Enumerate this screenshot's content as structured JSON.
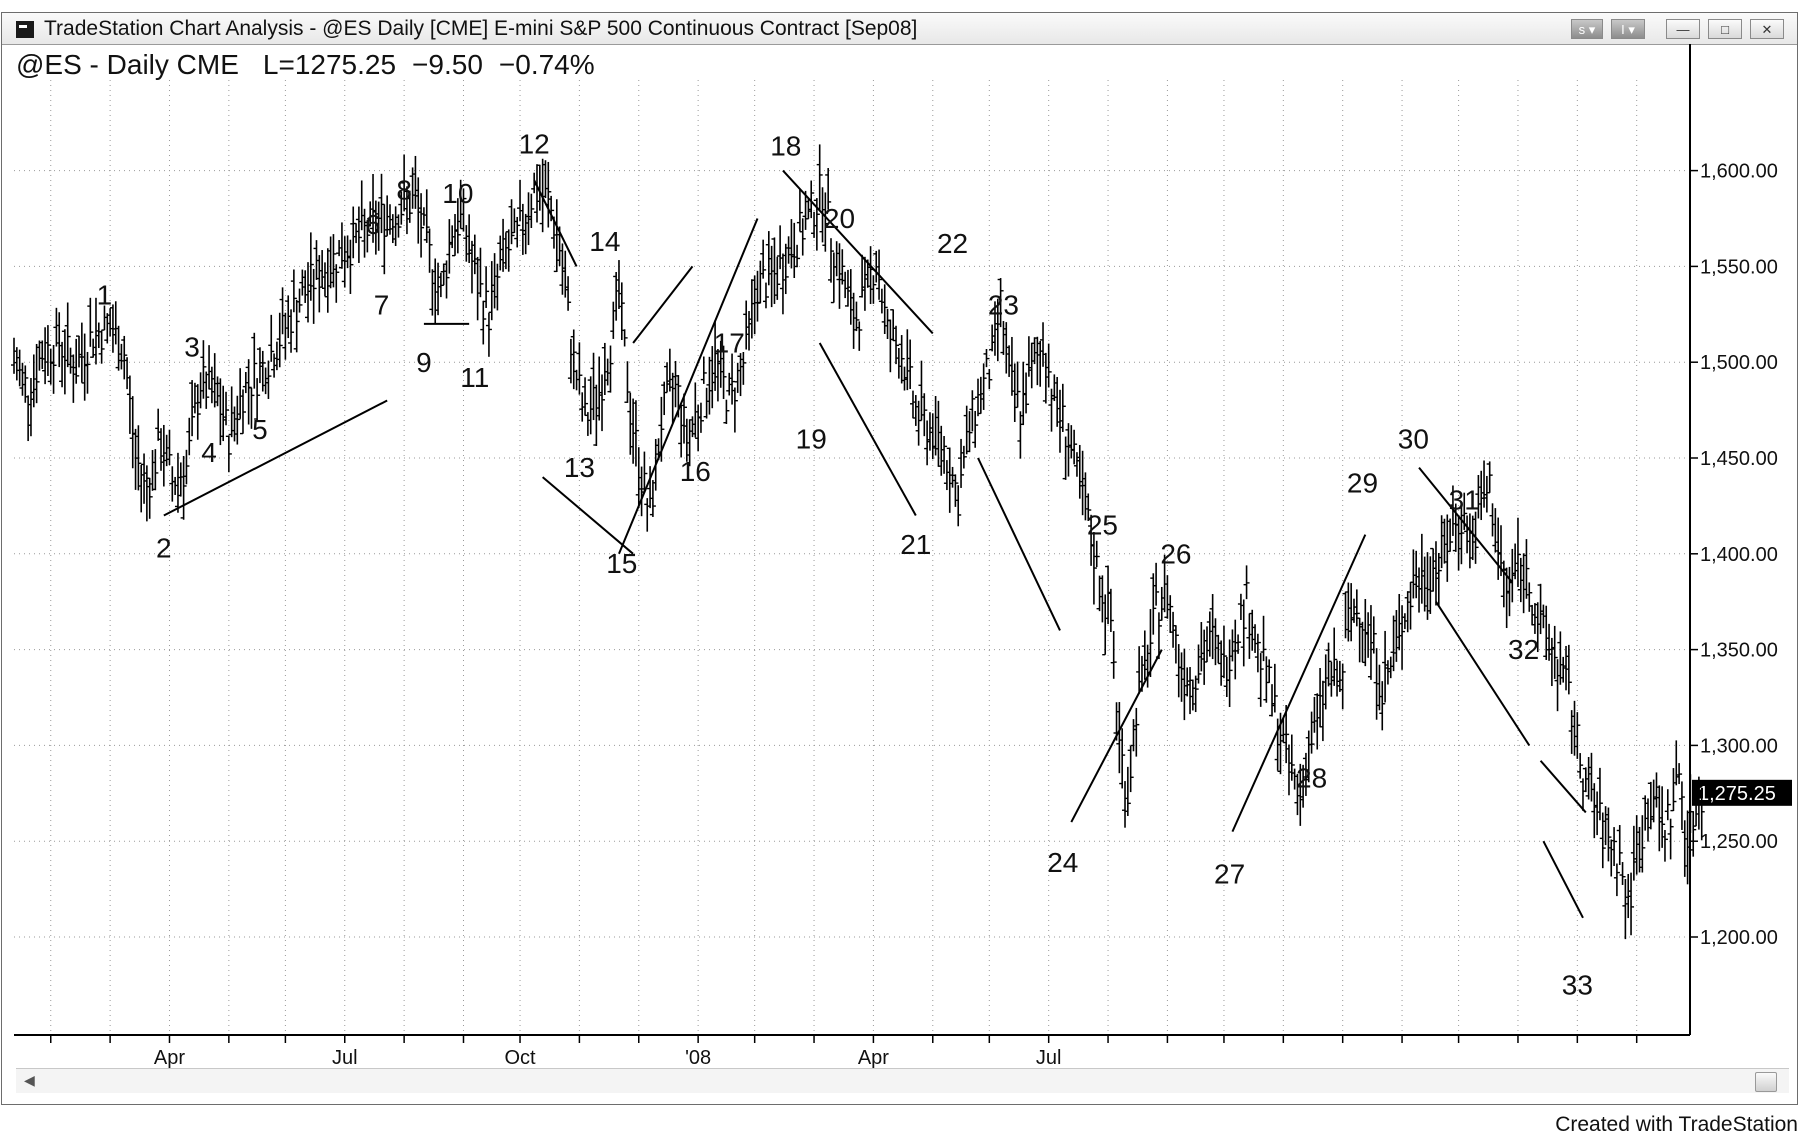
{
  "window": {
    "title": "TradeStation Chart Analysis - @ES Daily [CME] E-mini S&P 500 Continuous Contract [Sep08]",
    "symbol_header": {
      "symbol": "@ES - Daily CME",
      "last": "L=1275.25",
      "change": "−9.50",
      "change_pct": "−0.74%"
    },
    "buttons": {
      "s_dropdown": "s ▾",
      "i_dropdown": "I ▾"
    }
  },
  "footer": {
    "credit": "Created with TradeStation"
  },
  "chart_data": {
    "type": "line",
    "title": "",
    "xlabel": "",
    "ylabel": "",
    "ylim": [
      1150,
      1680
    ],
    "y_ticks": [
      "1,200.00",
      "1,250.00",
      "1,300.00",
      "1,350.00",
      "1,400.00",
      "1,450.00",
      "1,500.00",
      "1,550.00",
      "1,600.00"
    ],
    "x_ticks": [
      "Apr",
      "Jul",
      "Oct",
      "'08",
      "Apr",
      "Jul"
    ],
    "last_price_label": "1,275.25",
    "grid": true,
    "grid_style": "dotted",
    "price_bar_style": "OHLC daily bars",
    "series": [
      {
        "points": [
          {
            "x": 0,
            "y": 1500
          },
          {
            "x": 5,
            "y": 1485
          },
          {
            "x": 10,
            "y": 1505
          },
          {
            "x": 16,
            "y": 1510
          },
          {
            "x": 22,
            "y": 1498
          },
          {
            "x": 28,
            "y": 1515
          },
          {
            "x": 34,
            "y": 1518
          },
          {
            "x": 39,
            "y": 1505
          },
          {
            "x": 43,
            "y": 1450
          },
          {
            "x": 47,
            "y": 1435
          },
          {
            "x": 52,
            "y": 1458
          },
          {
            "x": 56,
            "y": 1438
          },
          {
            "x": 61,
            "y": 1445
          },
          {
            "x": 66,
            "y": 1490
          },
          {
            "x": 72,
            "y": 1480
          },
          {
            "x": 76,
            "y": 1462
          },
          {
            "x": 81,
            "y": 1485
          },
          {
            "x": 87,
            "y": 1495
          },
          {
            "x": 93,
            "y": 1510
          },
          {
            "x": 100,
            "y": 1530
          },
          {
            "x": 107,
            "y": 1545
          },
          {
            "x": 114,
            "y": 1555
          },
          {
            "x": 122,
            "y": 1565
          },
          {
            "x": 130,
            "y": 1575
          },
          {
            "x": 136,
            "y": 1580
          },
          {
            "x": 142,
            "y": 1585
          },
          {
            "x": 146,
            "y": 1560
          },
          {
            "x": 151,
            "y": 1535
          },
          {
            "x": 155,
            "y": 1570
          },
          {
            "x": 159,
            "y": 1575
          },
          {
            "x": 163,
            "y": 1545
          },
          {
            "x": 168,
            "y": 1525
          },
          {
            "x": 173,
            "y": 1555
          },
          {
            "x": 178,
            "y": 1565
          },
          {
            "x": 184,
            "y": 1590
          },
          {
            "x": 189,
            "y": 1585
          },
          {
            "x": 193,
            "y": 1560
          },
          {
            "x": 198,
            "y": 1500
          },
          {
            "x": 202,
            "y": 1470
          },
          {
            "x": 207,
            "y": 1485
          },
          {
            "x": 211,
            "y": 1510
          },
          {
            "x": 214,
            "y": 1535
          },
          {
            "x": 218,
            "y": 1475
          },
          {
            "x": 222,
            "y": 1440
          },
          {
            "x": 225,
            "y": 1420
          },
          {
            "x": 229,
            "y": 1470
          },
          {
            "x": 234,
            "y": 1490
          },
          {
            "x": 238,
            "y": 1460
          },
          {
            "x": 243,
            "y": 1480
          },
          {
            "x": 248,
            "y": 1500
          },
          {
            "x": 253,
            "y": 1480
          },
          {
            "x": 258,
            "y": 1500
          },
          {
            "x": 263,
            "y": 1540
          },
          {
            "x": 269,
            "y": 1545
          },
          {
            "x": 275,
            "y": 1560
          },
          {
            "x": 281,
            "y": 1575
          },
          {
            "x": 286,
            "y": 1590
          },
          {
            "x": 289,
            "y": 1565
          },
          {
            "x": 293,
            "y": 1545
          },
          {
            "x": 297,
            "y": 1520
          },
          {
            "x": 301,
            "y": 1535
          },
          {
            "x": 305,
            "y": 1555
          },
          {
            "x": 309,
            "y": 1515
          },
          {
            "x": 314,
            "y": 1505
          },
          {
            "x": 319,
            "y": 1475
          },
          {
            "x": 324,
            "y": 1465
          },
          {
            "x": 329,
            "y": 1455
          },
          {
            "x": 334,
            "y": 1430
          },
          {
            "x": 338,
            "y": 1465
          },
          {
            "x": 342,
            "y": 1485
          },
          {
            "x": 346,
            "y": 1500
          },
          {
            "x": 349,
            "y": 1530
          },
          {
            "x": 352,
            "y": 1490
          },
          {
            "x": 356,
            "y": 1475
          },
          {
            "x": 360,
            "y": 1495
          },
          {
            "x": 364,
            "y": 1510
          },
          {
            "x": 368,
            "y": 1480
          },
          {
            "x": 372,
            "y": 1465
          },
          {
            "x": 376,
            "y": 1440
          },
          {
            "x": 380,
            "y": 1415
          },
          {
            "x": 384,
            "y": 1385
          },
          {
            "x": 388,
            "y": 1365
          },
          {
            "x": 391,
            "y": 1300
          },
          {
            "x": 394,
            "y": 1275
          },
          {
            "x": 397,
            "y": 1320
          },
          {
            "x": 401,
            "y": 1345
          },
          {
            "x": 404,
            "y": 1370
          },
          {
            "x": 408,
            "y": 1380
          },
          {
            "x": 412,
            "y": 1345
          },
          {
            "x": 416,
            "y": 1335
          },
          {
            "x": 420,
            "y": 1345
          },
          {
            "x": 424,
            "y": 1355
          },
          {
            "x": 428,
            "y": 1340
          },
          {
            "x": 432,
            "y": 1360
          },
          {
            "x": 436,
            "y": 1375
          },
          {
            "x": 440,
            "y": 1350
          },
          {
            "x": 444,
            "y": 1330
          },
          {
            "x": 448,
            "y": 1305
          },
          {
            "x": 452,
            "y": 1285
          },
          {
            "x": 455,
            "y": 1275
          },
          {
            "x": 458,
            "y": 1300
          },
          {
            "x": 461,
            "y": 1310
          },
          {
            "x": 465,
            "y": 1340
          },
          {
            "x": 469,
            "y": 1330
          },
          {
            "x": 472,
            "y": 1365
          },
          {
            "x": 476,
            "y": 1372
          },
          {
            "x": 480,
            "y": 1355
          },
          {
            "x": 484,
            "y": 1330
          },
          {
            "x": 488,
            "y": 1345
          },
          {
            "x": 492,
            "y": 1372
          },
          {
            "x": 496,
            "y": 1385
          },
          {
            "x": 500,
            "y": 1390
          },
          {
            "x": 504,
            "y": 1395
          },
          {
            "x": 508,
            "y": 1410
          },
          {
            "x": 512,
            "y": 1420
          },
          {
            "x": 516,
            "y": 1405
          },
          {
            "x": 519,
            "y": 1425
          },
          {
            "x": 522,
            "y": 1435
          },
          {
            "x": 525,
            "y": 1400
          },
          {
            "x": 528,
            "y": 1380
          },
          {
            "x": 532,
            "y": 1395
          },
          {
            "x": 536,
            "y": 1385
          },
          {
            "x": 540,
            "y": 1360
          },
          {
            "x": 544,
            "y": 1350
          },
          {
            "x": 547,
            "y": 1340
          },
          {
            "x": 550,
            "y": 1325
          },
          {
            "x": 553,
            "y": 1300
          },
          {
            "x": 556,
            "y": 1280
          },
          {
            "x": 559,
            "y": 1270
          },
          {
            "x": 562,
            "y": 1255
          },
          {
            "x": 565,
            "y": 1250
          },
          {
            "x": 568,
            "y": 1240
          },
          {
            "x": 571,
            "y": 1215
          },
          {
            "x": 574,
            "y": 1245
          },
          {
            "x": 577,
            "y": 1260
          },
          {
            "x": 580,
            "y": 1275
          },
          {
            "x": 583,
            "y": 1255
          },
          {
            "x": 586,
            "y": 1265
          },
          {
            "x": 589,
            "y": 1285
          },
          {
            "x": 592,
            "y": 1250
          },
          {
            "x": 594,
            "y": 1262
          },
          {
            "x": 597,
            "y": 1275
          }
        ]
      }
    ],
    "trendlines": [
      {
        "x1": 53,
        "y1": 1420,
        "x2": 132,
        "y2": 1480
      },
      {
        "x1": 145,
        "y1": 1520,
        "x2": 161,
        "y2": 1520
      },
      {
        "x1": 184,
        "y1": 1595,
        "x2": 199,
        "y2": 1550
      },
      {
        "x1": 187,
        "y1": 1440,
        "x2": 219,
        "y2": 1400
      },
      {
        "x1": 214,
        "y1": 1400,
        "x2": 263,
        "y2": 1575
      },
      {
        "x1": 219,
        "y1": 1510,
        "x2": 240,
        "y2": 1550
      },
      {
        "x1": 272,
        "y1": 1600,
        "x2": 325,
        "y2": 1515
      },
      {
        "x1": 285,
        "y1": 1510,
        "x2": 319,
        "y2": 1420
      },
      {
        "x1": 341,
        "y1": 1450,
        "x2": 370,
        "y2": 1360
      },
      {
        "x1": 374,
        "y1": 1260,
        "x2": 406,
        "y2": 1350
      },
      {
        "x1": 431,
        "y1": 1255,
        "x2": 478,
        "y2": 1410
      },
      {
        "x1": 497,
        "y1": 1445,
        "x2": 530,
        "y2": 1385
      },
      {
        "x1": 503,
        "y1": 1375,
        "x2": 536,
        "y2": 1300
      },
      {
        "x1": 540,
        "y1": 1292,
        "x2": 556,
        "y2": 1265
      },
      {
        "x1": 541,
        "y1": 1250,
        "x2": 555,
        "y2": 1210
      }
    ],
    "annotations": [
      {
        "text": "1",
        "x": 32,
        "y": 1530
      },
      {
        "text": "2",
        "x": 53,
        "y": 1398
      },
      {
        "text": "3",
        "x": 63,
        "y": 1503
      },
      {
        "text": "4",
        "x": 69,
        "y": 1448
      },
      {
        "text": "5",
        "x": 87,
        "y": 1460
      },
      {
        "text": "6",
        "x": 127,
        "y": 1567
      },
      {
        "text": "7",
        "x": 130,
        "y": 1525
      },
      {
        "text": "8",
        "x": 138,
        "y": 1585
      },
      {
        "text": "9",
        "x": 145,
        "y": 1495
      },
      {
        "text": "10",
        "x": 157,
        "y": 1583
      },
      {
        "text": "11",
        "x": 163,
        "y": 1487
      },
      {
        "text": "12",
        "x": 184,
        "y": 1609
      },
      {
        "text": "13",
        "x": 200,
        "y": 1440
      },
      {
        "text": "14",
        "x": 209,
        "y": 1558
      },
      {
        "text": "15",
        "x": 215,
        "y": 1390
      },
      {
        "text": "16",
        "x": 241,
        "y": 1438
      },
      {
        "text": "17",
        "x": 253,
        "y": 1505
      },
      {
        "text": "18",
        "x": 273,
        "y": 1608
      },
      {
        "text": "19",
        "x": 282,
        "y": 1455
      },
      {
        "text": "20",
        "x": 292,
        "y": 1570
      },
      {
        "text": "21",
        "x": 319,
        "y": 1400
      },
      {
        "text": "22",
        "x": 332,
        "y": 1557
      },
      {
        "text": "23",
        "x": 350,
        "y": 1525
      },
      {
        "text": "24",
        "x": 371,
        "y": 1234
      },
      {
        "text": "25",
        "x": 385,
        "y": 1410
      },
      {
        "text": "26",
        "x": 411,
        "y": 1395
      },
      {
        "text": "27",
        "x": 430,
        "y": 1228
      },
      {
        "text": "28",
        "x": 459,
        "y": 1278
      },
      {
        "text": "29",
        "x": 477,
        "y": 1432
      },
      {
        "text": "30",
        "x": 495,
        "y": 1455
      },
      {
        "text": "31",
        "x": 513,
        "y": 1423
      },
      {
        "text": "32",
        "x": 534,
        "y": 1345
      },
      {
        "text": "33",
        "x": 553,
        "y": 1170
      }
    ]
  }
}
